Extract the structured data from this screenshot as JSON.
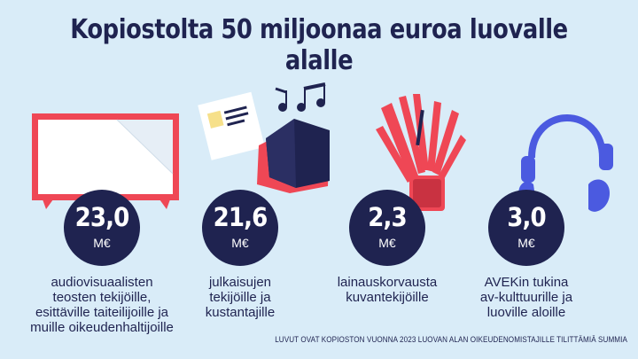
{
  "title": "Kopiostolta 50 miljoonaa euroa luovalle alalle",
  "items": [
    {
      "icon": "tv-icon",
      "value": "23,0",
      "unit": "M€",
      "lines": [
        "audiovisuaalisten",
        "teosten tekijöille,",
        "esittäville taiteilijoille ja",
        "muille oikeudenhaltijoille"
      ]
    },
    {
      "icon": "book-music-icon",
      "value": "21,6",
      "unit": "M€",
      "lines": [
        "julkaisujen",
        "tekijöille ja",
        "kustantajille"
      ]
    },
    {
      "icon": "brushes-icon",
      "value": "2,3",
      "unit": "M€",
      "lines": [
        "lainauskorvausta",
        "kuvantekijöille"
      ]
    },
    {
      "icon": "headphones-icon",
      "value": "3,0",
      "unit": "M€",
      "lines": [
        "AVEKin tukina",
        "av-kulttuurille ja",
        "luoville aloille"
      ]
    }
  ],
  "footer": "LUVUT OVAT KOPIOSTON VUONNA 2023 LUOVAN ALAN OIKEUDENOMISTAJILLE TILITTÄMIÄ SUMMIA",
  "colors": {
    "background": "#d9ecf8",
    "navy": "#1f2350",
    "red": "#ef4755",
    "blue": "#4b5ae0"
  }
}
